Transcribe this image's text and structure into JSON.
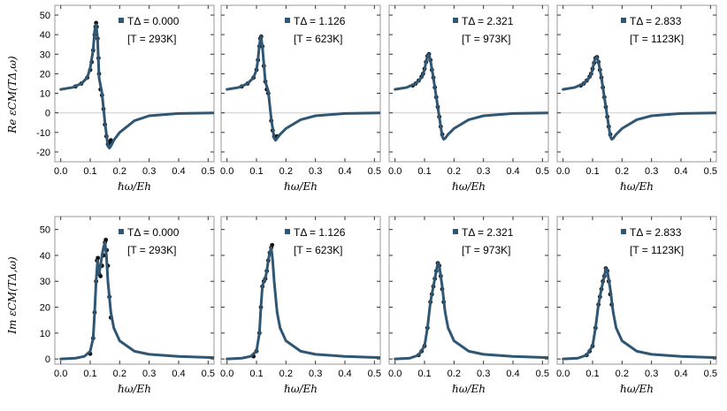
{
  "figure": {
    "row_labels": [
      "Re εCM(TΔ,ω)",
      "Im εCM(TΔ,ω)"
    ],
    "x_label": "ℏω/Eh",
    "colors": {
      "curve": "#2f5673",
      "points": "#111111",
      "zero_line": "#cccccc",
      "frame": "#9a9a9a"
    },
    "legend_symbol": "square"
  },
  "chart_data": [
    {
      "type": "line",
      "row": "Re",
      "T_delta_label": "TΔ = 0.000",
      "temperature_label": "[T = 293K]",
      "xlim": [
        -0.02,
        0.52
      ],
      "ylim": [
        -25,
        55
      ],
      "x_ticks": [
        0.0,
        0.1,
        0.2,
        0.3,
        0.4,
        0.5
      ],
      "y_ticks": [
        -20,
        -10,
        0,
        10,
        20,
        30,
        40,
        50
      ],
      "series": [
        {
          "name": "model",
          "x": [
            0.0,
            0.04,
            0.07,
            0.09,
            0.1,
            0.11,
            0.115,
            0.12,
            0.125,
            0.13,
            0.14,
            0.15,
            0.16,
            0.165,
            0.17,
            0.18,
            0.2,
            0.25,
            0.3,
            0.4,
            0.52
          ],
          "y": [
            12,
            13,
            15,
            18,
            23,
            32,
            42,
            45,
            38,
            18,
            10,
            -5,
            -17,
            -18,
            -17,
            -14,
            -10,
            -4,
            -1.5,
            -0.3,
            0
          ]
        },
        {
          "name": "data",
          "x": [
            0.05,
            0.07,
            0.09,
            0.1,
            0.105,
            0.11,
            0.115,
            0.118,
            0.12,
            0.122,
            0.125,
            0.128,
            0.13,
            0.135,
            0.14,
            0.145,
            0.15,
            0.155,
            0.16,
            0.165,
            0.17
          ],
          "y": [
            13.5,
            15,
            18,
            22,
            26,
            32,
            40,
            44,
            46,
            44,
            38,
            28,
            20,
            12,
            9,
            2,
            -6,
            -12,
            -16,
            -15,
            -14
          ]
        }
      ]
    },
    {
      "type": "line",
      "row": "Re",
      "T_delta_label": "TΔ = 1.126",
      "temperature_label": "[T = 623K]",
      "xlim": [
        -0.02,
        0.52
      ],
      "ylim": [
        -25,
        55
      ],
      "x_ticks": [
        0.0,
        0.1,
        0.2,
        0.3,
        0.4,
        0.5
      ],
      "y_ticks": [],
      "series": [
        {
          "name": "model",
          "x": [
            0.0,
            0.04,
            0.07,
            0.09,
            0.1,
            0.105,
            0.11,
            0.115,
            0.12,
            0.125,
            0.13,
            0.14,
            0.15,
            0.16,
            0.165,
            0.17,
            0.18,
            0.2,
            0.25,
            0.3,
            0.4,
            0.52
          ],
          "y": [
            12,
            13,
            15,
            18,
            22,
            27,
            35,
            39,
            34,
            25,
            16,
            11,
            -3,
            -13,
            -14,
            -13,
            -11,
            -8,
            -3.5,
            -1.5,
            -0.3,
            0
          ]
        },
        {
          "name": "data",
          "x": [
            0.05,
            0.07,
            0.09,
            0.1,
            0.105,
            0.11,
            0.113,
            0.116,
            0.12,
            0.125,
            0.13,
            0.135,
            0.14,
            0.15,
            0.155,
            0.16,
            0.165,
            0.17
          ],
          "y": [
            13.5,
            15,
            18,
            22,
            27,
            34,
            38,
            39,
            34,
            24,
            16,
            12,
            10,
            -4,
            -9,
            -12,
            -13,
            -12
          ]
        }
      ]
    },
    {
      "type": "line",
      "row": "Re",
      "T_delta_label": "TΔ = 2.321",
      "temperature_label": "[T = 973K]",
      "xlim": [
        -0.02,
        0.52
      ],
      "ylim": [
        -25,
        55
      ],
      "x_ticks": [
        0.0,
        0.1,
        0.2,
        0.3,
        0.4,
        0.5
      ],
      "y_ticks": [],
      "series": [
        {
          "name": "model",
          "x": [
            0.0,
            0.04,
            0.07,
            0.09,
            0.1,
            0.105,
            0.11,
            0.115,
            0.12,
            0.13,
            0.14,
            0.15,
            0.16,
            0.165,
            0.17,
            0.18,
            0.2,
            0.25,
            0.3,
            0.4,
            0.52
          ],
          "y": [
            12,
            13,
            15,
            18,
            22,
            26,
            29,
            30,
            27,
            18,
            8,
            -2,
            -12,
            -13.5,
            -13,
            -11,
            -8,
            -3.5,
            -1.5,
            -0.3,
            0
          ]
        },
        {
          "name": "data",
          "x": [
            0.06,
            0.07,
            0.08,
            0.09,
            0.095,
            0.1,
            0.105,
            0.11,
            0.115,
            0.12,
            0.125,
            0.13,
            0.135,
            0.14,
            0.145,
            0.15,
            0.155,
            0.16
          ],
          "y": [
            14,
            15,
            16.5,
            18.5,
            20,
            22.5,
            26,
            29,
            30,
            27,
            22,
            18,
            13,
            8,
            3,
            -2,
            -7,
            -11
          ]
        }
      ]
    },
    {
      "type": "line",
      "row": "Re",
      "T_delta_label": "TΔ = 2.833",
      "temperature_label": "[T = 1123K]",
      "xlim": [
        -0.02,
        0.52
      ],
      "ylim": [
        -25,
        55
      ],
      "x_ticks": [
        0.0,
        0.1,
        0.2,
        0.3,
        0.4,
        0.5
      ],
      "y_ticks": [],
      "series": [
        {
          "name": "model",
          "x": [
            0.0,
            0.04,
            0.07,
            0.09,
            0.1,
            0.105,
            0.11,
            0.115,
            0.12,
            0.13,
            0.14,
            0.15,
            0.16,
            0.165,
            0.17,
            0.18,
            0.2,
            0.25,
            0.3,
            0.4,
            0.52
          ],
          "y": [
            12,
            13,
            15,
            18,
            22,
            26,
            28,
            28.5,
            26,
            18,
            8,
            -2,
            -12,
            -13.5,
            -13,
            -11,
            -8,
            -3.5,
            -1.5,
            -0.3,
            0
          ]
        },
        {
          "name": "data",
          "x": [
            0.06,
            0.07,
            0.08,
            0.09,
            0.095,
            0.1,
            0.105,
            0.11,
            0.115,
            0.12,
            0.125,
            0.13,
            0.135,
            0.14,
            0.145,
            0.15,
            0.155,
            0.16
          ],
          "y": [
            14,
            15,
            16.5,
            18.5,
            20,
            22.5,
            25.5,
            28,
            28.5,
            26,
            22,
            18,
            13,
            8,
            3,
            -2,
            -7,
            -11
          ]
        }
      ]
    },
    {
      "type": "line",
      "row": "Im",
      "T_delta_label": "TΔ = 0.000",
      "temperature_label": "[T = 293K]",
      "xlim": [
        -0.02,
        0.52
      ],
      "ylim": [
        -2,
        55
      ],
      "x_ticks": [
        0.0,
        0.1,
        0.2,
        0.3,
        0.4,
        0.5
      ],
      "y_ticks": [
        0,
        10,
        20,
        30,
        40,
        50
      ],
      "series": [
        {
          "name": "model",
          "x": [
            0.0,
            0.05,
            0.08,
            0.1,
            0.11,
            0.115,
            0.12,
            0.125,
            0.13,
            0.135,
            0.14,
            0.145,
            0.15,
            0.155,
            0.16,
            0.17,
            0.18,
            0.2,
            0.25,
            0.3,
            0.4,
            0.52
          ],
          "y": [
            0,
            0.3,
            1,
            3,
            8,
            18,
            30,
            38,
            33,
            36,
            40,
            43,
            45,
            40,
            30,
            18,
            12,
            7,
            3,
            1.8,
            1,
            0.5
          ]
        },
        {
          "name": "data",
          "x": [
            0.1,
            0.11,
            0.115,
            0.12,
            0.123,
            0.126,
            0.13,
            0.135,
            0.14,
            0.145,
            0.15,
            0.153,
            0.156,
            0.16,
            0.165,
            0.17
          ],
          "y": [
            2,
            8,
            18,
            30,
            38,
            39,
            33,
            32,
            36,
            40,
            45,
            46,
            42,
            36,
            24,
            16
          ]
        }
      ]
    },
    {
      "type": "line",
      "row": "Im",
      "T_delta_label": "TΔ = 1.126",
      "temperature_label": "[T = 623K]",
      "xlim": [
        -0.02,
        0.52
      ],
      "ylim": [
        -2,
        55
      ],
      "x_ticks": [
        0.0,
        0.1,
        0.2,
        0.3,
        0.4,
        0.5
      ],
      "y_ticks": [],
      "series": [
        {
          "name": "model",
          "x": [
            0.0,
            0.05,
            0.08,
            0.1,
            0.11,
            0.115,
            0.12,
            0.125,
            0.13,
            0.135,
            0.14,
            0.145,
            0.15,
            0.155,
            0.16,
            0.17,
            0.18,
            0.2,
            0.25,
            0.3,
            0.4,
            0.52
          ],
          "y": [
            0,
            0.3,
            1,
            3,
            10,
            20,
            28,
            30,
            31,
            34,
            38,
            41,
            43,
            38,
            30,
            18,
            12,
            7,
            3,
            1.8,
            1,
            0.5
          ]
        },
        {
          "name": "data",
          "x": [
            0.09,
            0.1,
            0.11,
            0.115,
            0.12,
            0.125,
            0.13,
            0.135,
            0.14,
            0.145,
            0.15,
            0.153
          ],
          "y": [
            1,
            3,
            10,
            20,
            28,
            30,
            31,
            34,
            38,
            41,
            43,
            44
          ]
        }
      ]
    },
    {
      "type": "line",
      "row": "Im",
      "T_delta_label": "TΔ = 2.321",
      "temperature_label": "[T = 973K]",
      "xlim": [
        -0.02,
        0.52
      ],
      "ylim": [
        -2,
        55
      ],
      "x_ticks": [
        0.0,
        0.1,
        0.2,
        0.3,
        0.4,
        0.5
      ],
      "y_ticks": [],
      "series": [
        {
          "name": "model",
          "x": [
            0.0,
            0.05,
            0.08,
            0.1,
            0.11,
            0.12,
            0.13,
            0.14,
            0.145,
            0.15,
            0.16,
            0.17,
            0.18,
            0.2,
            0.25,
            0.3,
            0.4,
            0.52
          ],
          "y": [
            0,
            0.3,
            1.5,
            5,
            12,
            22,
            28,
            34,
            37,
            36,
            28,
            18,
            12,
            7,
            3,
            1.8,
            1,
            0.5
          ]
        },
        {
          "name": "data",
          "x": [
            0.08,
            0.09,
            0.1,
            0.11,
            0.12,
            0.125,
            0.13,
            0.135,
            0.14,
            0.145,
            0.15,
            0.155,
            0.16,
            0.165
          ],
          "y": [
            1.5,
            3,
            5,
            12,
            22,
            25,
            28,
            31,
            34,
            37,
            36,
            32,
            27,
            22
          ]
        }
      ]
    },
    {
      "type": "line",
      "row": "Im",
      "T_delta_label": "TΔ = 2.833",
      "temperature_label": "[T = 1123K]",
      "xlim": [
        -0.02,
        0.52
      ],
      "ylim": [
        -2,
        55
      ],
      "x_ticks": [
        0.0,
        0.1,
        0.2,
        0.3,
        0.4,
        0.5
      ],
      "y_ticks": [],
      "series": [
        {
          "name": "model",
          "x": [
            0.0,
            0.05,
            0.08,
            0.1,
            0.11,
            0.12,
            0.13,
            0.14,
            0.145,
            0.15,
            0.16,
            0.17,
            0.18,
            0.2,
            0.25,
            0.3,
            0.4,
            0.52
          ],
          "y": [
            0,
            0.3,
            1.5,
            5,
            12,
            21,
            27,
            32,
            35,
            34,
            27,
            18,
            12,
            7,
            3,
            1.8,
            1,
            0.5
          ]
        },
        {
          "name": "data",
          "x": [
            0.08,
            0.09,
            0.1,
            0.11,
            0.12,
            0.125,
            0.13,
            0.135,
            0.14,
            0.145,
            0.15,
            0.155,
            0.16,
            0.165
          ],
          "y": [
            1.5,
            3,
            5,
            12,
            21,
            24,
            27,
            30,
            32,
            35,
            34,
            30,
            25,
            21
          ]
        }
      ]
    }
  ]
}
